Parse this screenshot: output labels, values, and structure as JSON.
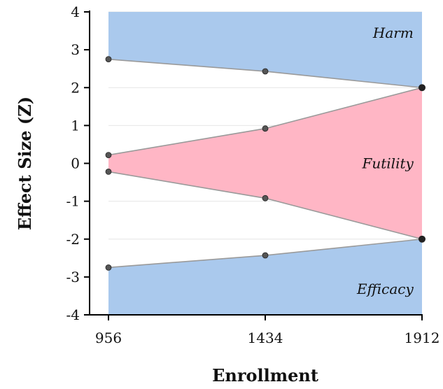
{
  "chart_data": {
    "type": "area",
    "xlabel": "Enrollment",
    "ylabel": "Effect Size (Z)",
    "x_ticks": [
      956,
      1434,
      1912
    ],
    "y_ticks": [
      4,
      3,
      2,
      1,
      0,
      -1,
      -2,
      -3,
      -4
    ],
    "xlim": [
      956,
      1912
    ],
    "ylim": [
      -4,
      4
    ],
    "grid": "horizontal",
    "colors": {
      "boundary_region": "#aac9ed",
      "futility_region": "#ffb6c5",
      "line": "#9a9a9a",
      "point": "#555555"
    },
    "series": [
      {
        "name": "Harm",
        "x": [
          956,
          1434,
          1912
        ],
        "y": [
          2.75,
          2.43,
          2.0
        ]
      },
      {
        "name": "Futility",
        "x": [
          956,
          1434,
          1912
        ],
        "y_upper": [
          0.22,
          0.92,
          2.0
        ],
        "y_lower": [
          -0.22,
          -0.92,
          -2.0
        ]
      },
      {
        "name": "Efficacy",
        "x": [
          956,
          1434,
          1912
        ],
        "y": [
          -2.75,
          -2.43,
          -2.0
        ]
      }
    ]
  }
}
